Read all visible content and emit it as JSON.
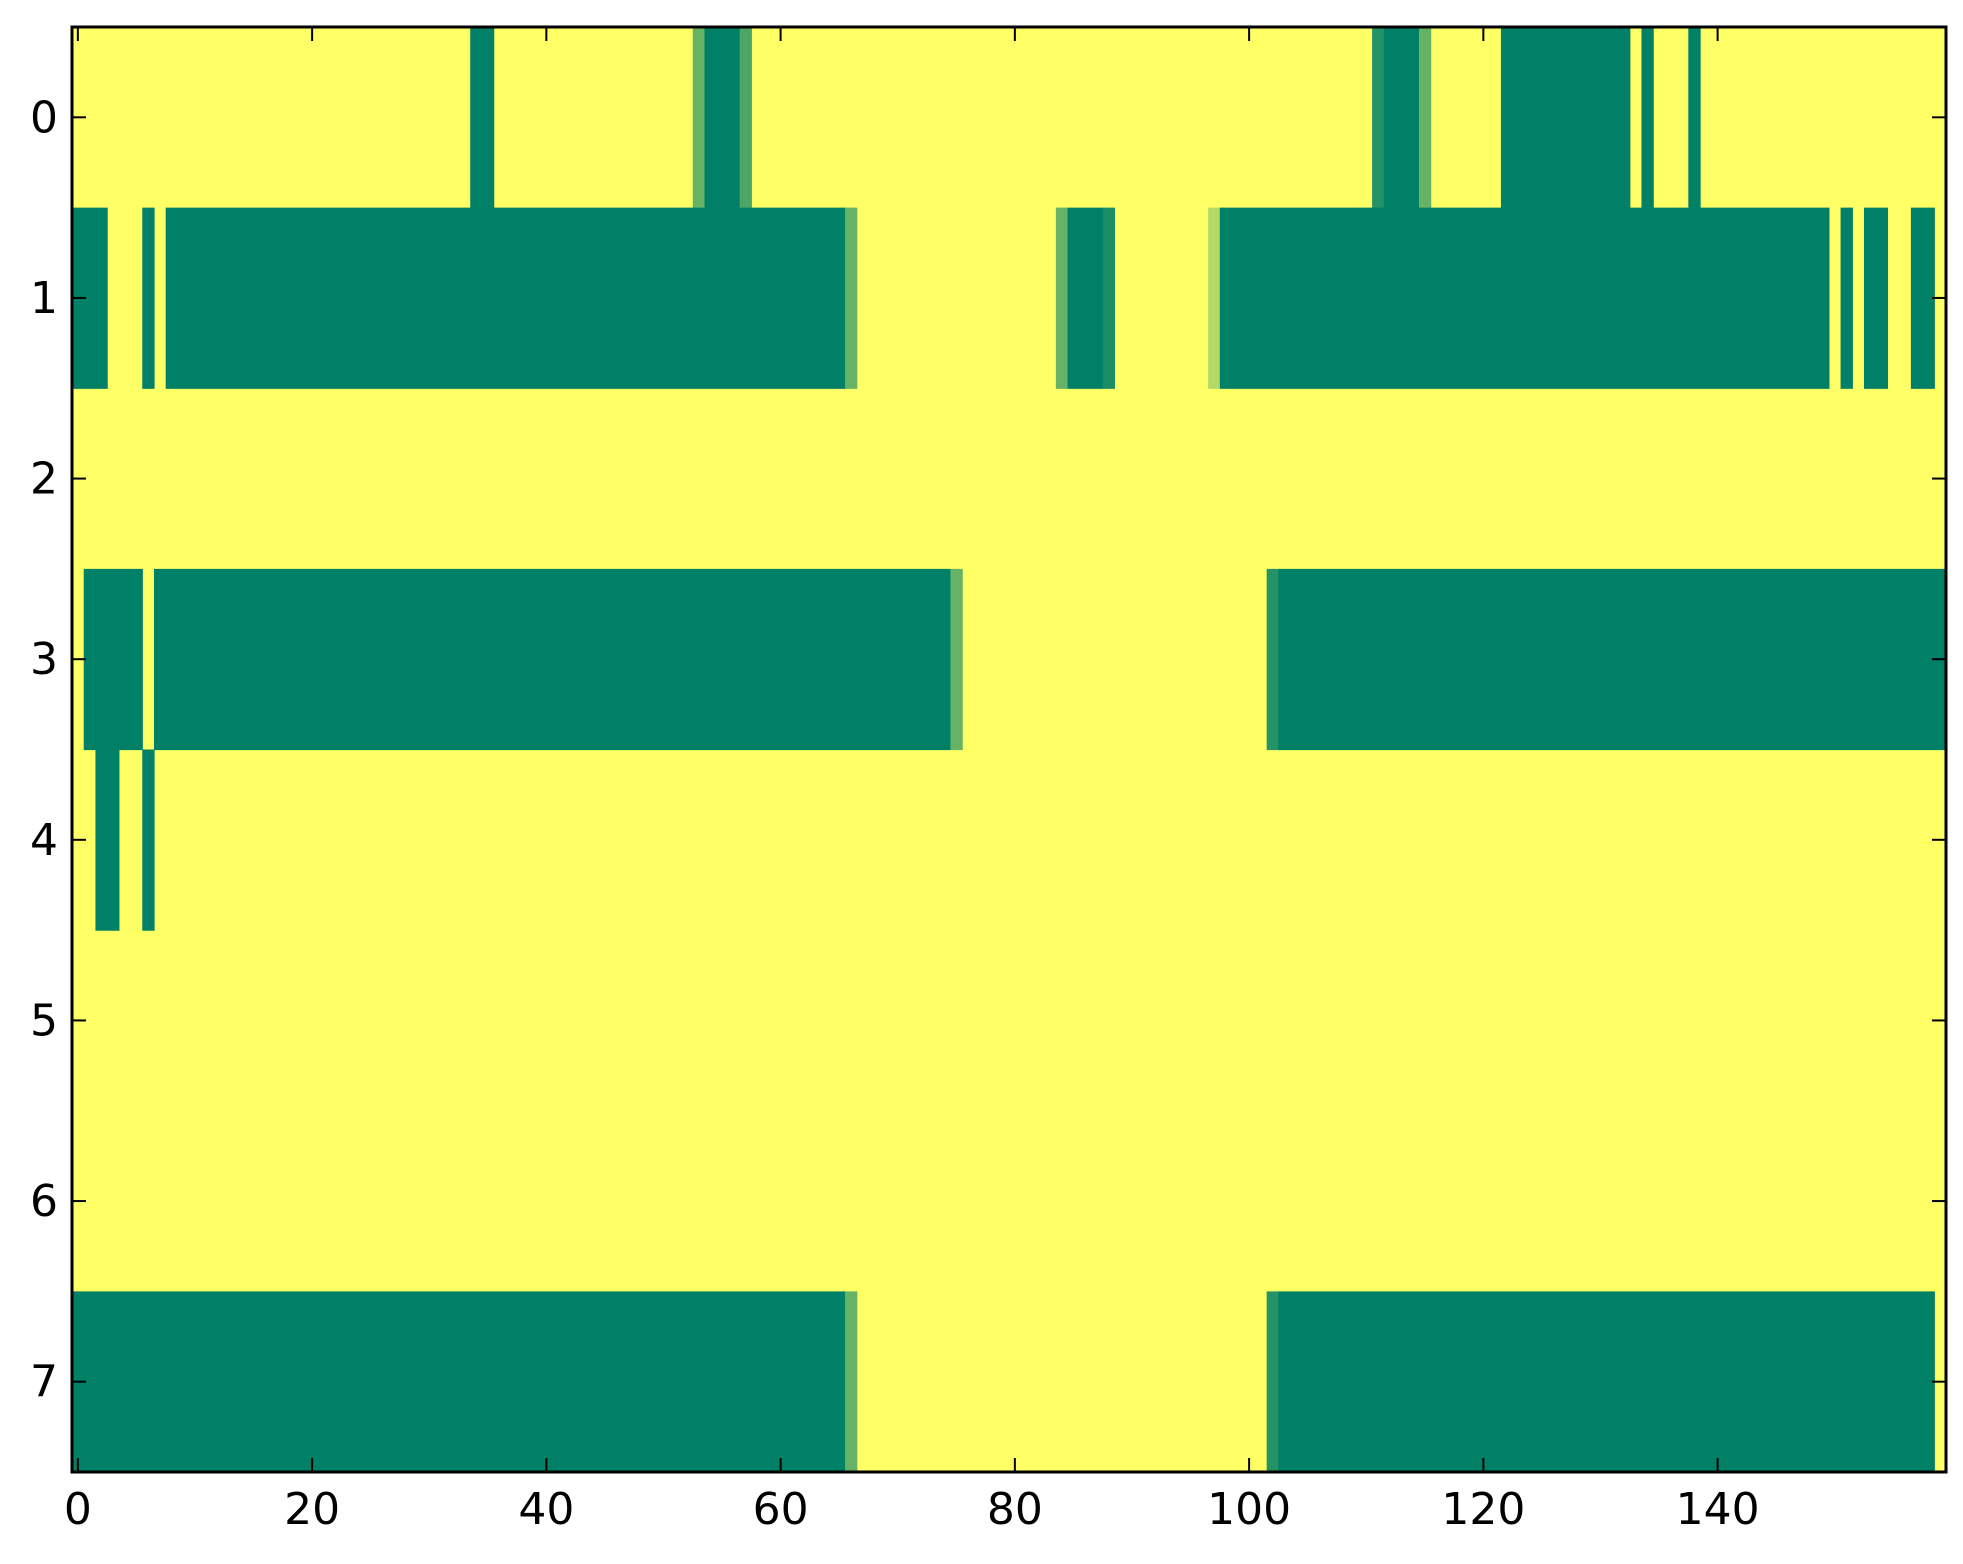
{
  "chart_data": {
    "type": "heatmap",
    "title": "",
    "xlabel": "",
    "ylabel": "",
    "xlim": [
      -0.5,
      159.5
    ],
    "ylim": [
      -0.5,
      7.5
    ],
    "y_inverted": true,
    "n_columns": 160,
    "rows": [
      0,
      1,
      2,
      3,
      4,
      5,
      6,
      7
    ],
    "x_ticks": [
      0,
      20,
      40,
      60,
      80,
      100,
      120,
      140
    ],
    "x_tick_labels": [
      "0",
      "20",
      "40",
      "60",
      "80",
      "100",
      "120",
      "140"
    ],
    "y_ticks": [
      0,
      1,
      2,
      3,
      4,
      5,
      6,
      7
    ],
    "y_tick_labels": [
      "0",
      "1",
      "2",
      "3",
      "4",
      "5",
      "6",
      "7"
    ],
    "colorscale": {
      "low": "#ffff66",
      "high": "#008066"
    },
    "default_value": 0,
    "grid": false,
    "cell_runs": [
      {
        "row": 0,
        "start": 34,
        "end": 35,
        "value": 1
      },
      {
        "row": 0,
        "start": 53,
        "end": 53,
        "value": 0.6
      },
      {
        "row": 0,
        "start": 54,
        "end": 56,
        "value": 1
      },
      {
        "row": 0,
        "start": 57,
        "end": 57,
        "value": 0.7
      },
      {
        "row": 0,
        "start": 111,
        "end": 111,
        "value": 0.85
      },
      {
        "row": 0,
        "start": 112,
        "end": 114,
        "value": 1
      },
      {
        "row": 0,
        "start": 115,
        "end": 115,
        "value": 0.6
      },
      {
        "row": 0,
        "start": 122,
        "end": 132,
        "value": 1
      },
      {
        "row": 0,
        "start": 134,
        "end": 134,
        "value": 1
      },
      {
        "row": 0,
        "start": 138,
        "end": 138,
        "value": 1
      },
      {
        "row": 1,
        "start": 0,
        "end": 2,
        "value": 1
      },
      {
        "row": 1,
        "start": 6,
        "end": 6,
        "value": 1
      },
      {
        "row": 1,
        "start": 8,
        "end": 65,
        "value": 1
      },
      {
        "row": 1,
        "start": 66,
        "end": 66,
        "value": 0.6
      },
      {
        "row": 1,
        "start": 84,
        "end": 84,
        "value": 0.6
      },
      {
        "row": 1,
        "start": 85,
        "end": 87,
        "value": 1
      },
      {
        "row": 1,
        "start": 88,
        "end": 88,
        "value": 0.9
      },
      {
        "row": 1,
        "start": 97,
        "end": 97,
        "value": 0.3
      },
      {
        "row": 1,
        "start": 98,
        "end": 149,
        "value": 1
      },
      {
        "row": 1,
        "start": 151,
        "end": 151,
        "value": 1
      },
      {
        "row": 1,
        "start": 153,
        "end": 154,
        "value": 1
      },
      {
        "row": 1,
        "start": 157,
        "end": 158,
        "value": 1
      },
      {
        "row": 3,
        "start": 1,
        "end": 5,
        "value": 1
      },
      {
        "row": 3,
        "start": 7,
        "end": 74,
        "value": 1
      },
      {
        "row": 3,
        "start": 75,
        "end": 75,
        "value": 0.6
      },
      {
        "row": 3,
        "start": 102,
        "end": 102,
        "value": 0.85
      },
      {
        "row": 3,
        "start": 103,
        "end": 159,
        "value": 1
      },
      {
        "row": 4,
        "start": 2,
        "end": 3,
        "value": 1
      },
      {
        "row": 4,
        "start": 6,
        "end": 6,
        "value": 1
      },
      {
        "row": 7,
        "start": 0,
        "end": 65,
        "value": 1
      },
      {
        "row": 7,
        "start": 66,
        "end": 66,
        "value": 0.6
      },
      {
        "row": 7,
        "start": 102,
        "end": 102,
        "value": 0.85
      },
      {
        "row": 7,
        "start": 103,
        "end": 158,
        "value": 1
      }
    ]
  }
}
